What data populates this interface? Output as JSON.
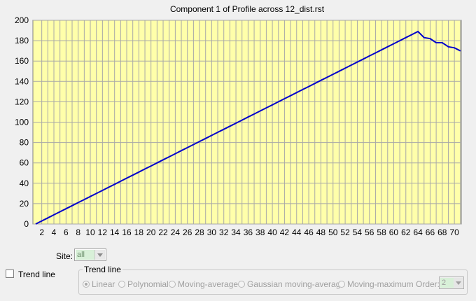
{
  "colors": {
    "plot_background": "#ffffaa",
    "series_line": "#0000cc",
    "grid": "#a8a8a8"
  },
  "chart_data": {
    "type": "line",
    "title": "Component 1 of Profile across 12_dist.rst",
    "xlabel": "",
    "ylabel": "",
    "xlim": [
      1,
      71
    ],
    "ylim": [
      0,
      200
    ],
    "x_ticks": [
      "2",
      "4",
      "6",
      "8",
      "10",
      "12",
      "14",
      "16",
      "18",
      "20",
      "22",
      "24",
      "26",
      "28",
      "30",
      "32",
      "34",
      "36",
      "38",
      "40",
      "42",
      "44",
      "46",
      "48",
      "50",
      "52",
      "54",
      "56",
      "58",
      "60",
      "62",
      "64",
      "66",
      "68",
      "70"
    ],
    "y_ticks": [
      "0",
      "20",
      "40",
      "60",
      "80",
      "100",
      "120",
      "140",
      "160",
      "180",
      "200"
    ],
    "grid": true,
    "series": [
      {
        "x": [
          1,
          2,
          3,
          4,
          5,
          6,
          7,
          8,
          9,
          10,
          11,
          12,
          13,
          14,
          15,
          16,
          17,
          18,
          19,
          20,
          21,
          22,
          23,
          24,
          25,
          26,
          27,
          28,
          29,
          30,
          31,
          32,
          33,
          34,
          35,
          36,
          37,
          38,
          39,
          40,
          41,
          42,
          43,
          44,
          45,
          46,
          47,
          48,
          49,
          50,
          51,
          52,
          53,
          54,
          55,
          56,
          57,
          58,
          59,
          60,
          61,
          62,
          63,
          64,
          65,
          66,
          67,
          68,
          69,
          70,
          71
        ],
        "y": [
          0,
          3,
          6,
          9,
          12,
          15,
          18,
          21,
          24,
          27,
          30,
          33,
          36,
          39,
          42,
          45,
          48,
          51,
          54,
          57,
          60,
          63,
          66,
          69,
          72,
          75,
          78,
          81,
          84,
          87,
          90,
          93,
          96,
          99,
          102,
          105,
          108,
          111,
          114,
          117,
          120,
          123,
          126,
          129,
          132,
          135,
          138,
          141,
          144,
          147,
          150,
          153,
          156,
          159,
          162,
          165,
          168,
          171,
          174,
          177,
          180,
          183,
          186,
          189,
          183,
          182,
          178,
          178,
          174,
          173,
          170
        ]
      }
    ]
  },
  "controls": {
    "site_label": "Site:",
    "site_value": "all",
    "trend_checkbox_label": "Trend line",
    "trend_checked": false,
    "trend_group_title": "Trend line",
    "options": [
      "Linear",
      "Polynomial",
      "Moving-average",
      "Gaussian moving-average",
      "Moving-maximum"
    ],
    "selected_option": "Linear",
    "order_label": "Order:",
    "order_value": "2"
  }
}
